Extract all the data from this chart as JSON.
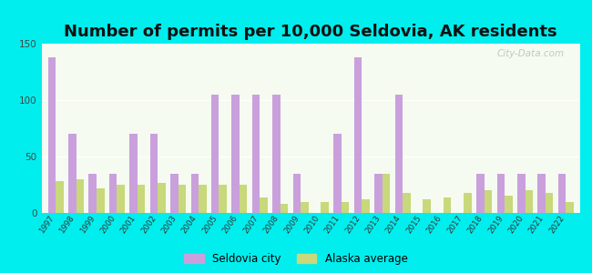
{
  "title": "Number of permits per 10,000 Seldovia, AK residents",
  "years": [
    1997,
    1998,
    1999,
    2000,
    2001,
    2002,
    2003,
    2004,
    2005,
    2006,
    2007,
    2008,
    2009,
    2010,
    2011,
    2012,
    2013,
    2014,
    2015,
    2016,
    2017,
    2018,
    2019,
    2020,
    2021,
    2022
  ],
  "seldovia": [
    138,
    70,
    35,
    35,
    70,
    70,
    35,
    35,
    105,
    105,
    105,
    105,
    35,
    0,
    70,
    138,
    35,
    105,
    0,
    0,
    0,
    35,
    35,
    35,
    35,
    35
  ],
  "alaska": [
    28,
    30,
    22,
    25,
    25,
    27,
    25,
    25,
    25,
    25,
    14,
    8,
    10,
    10,
    10,
    12,
    35,
    18,
    12,
    14,
    18,
    20,
    15,
    20,
    18,
    10
  ],
  "seldovia_color": "#C9A0DC",
  "alaska_color": "#C8D87A",
  "background_outer": "#00EEEE",
  "ylim": [
    0,
    150
  ],
  "yticks": [
    0,
    50,
    100,
    150
  ],
  "title_fontsize": 13,
  "bar_width": 0.38,
  "legend_seldovia": "Seldovia city",
  "legend_alaska": "Alaska average",
  "watermark": "City-Data.com"
}
